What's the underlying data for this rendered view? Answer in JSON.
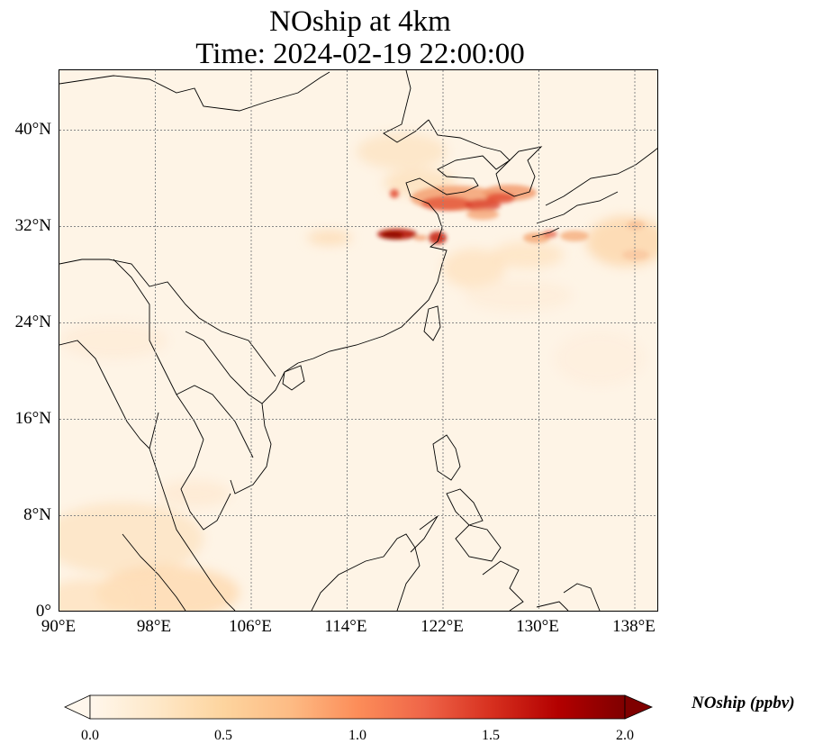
{
  "title_line1": "NOship at 4km",
  "title_line2": "Time: 2024-02-19 22:00:00",
  "lon_ticks": [
    "90°E",
    "98°E",
    "106°E",
    "114°E",
    "122°E",
    "130°E",
    "138°E"
  ],
  "lat_ticks": [
    "40°N",
    "32°N",
    "24°N",
    "16°N",
    "8°N",
    "0°"
  ],
  "colorbar": {
    "label": "NOship (ppbv)",
    "ticks": [
      "0.0",
      "0.5",
      "1.0",
      "1.5",
      "2.0"
    ],
    "colormap": "OrRd",
    "extend": "both",
    "min": 0.0,
    "max": 2.0
  },
  "map": {
    "projection": "PlateCarree",
    "lon_range": [
      90,
      140
    ],
    "lat_range": [
      0,
      45
    ],
    "gridlines": "dotted gray",
    "coastlines": "black"
  },
  "colors": {
    "low": "#fff7ec",
    "mid": "#fdbb84",
    "high": "#d7301f",
    "max": "#7f0000"
  }
}
